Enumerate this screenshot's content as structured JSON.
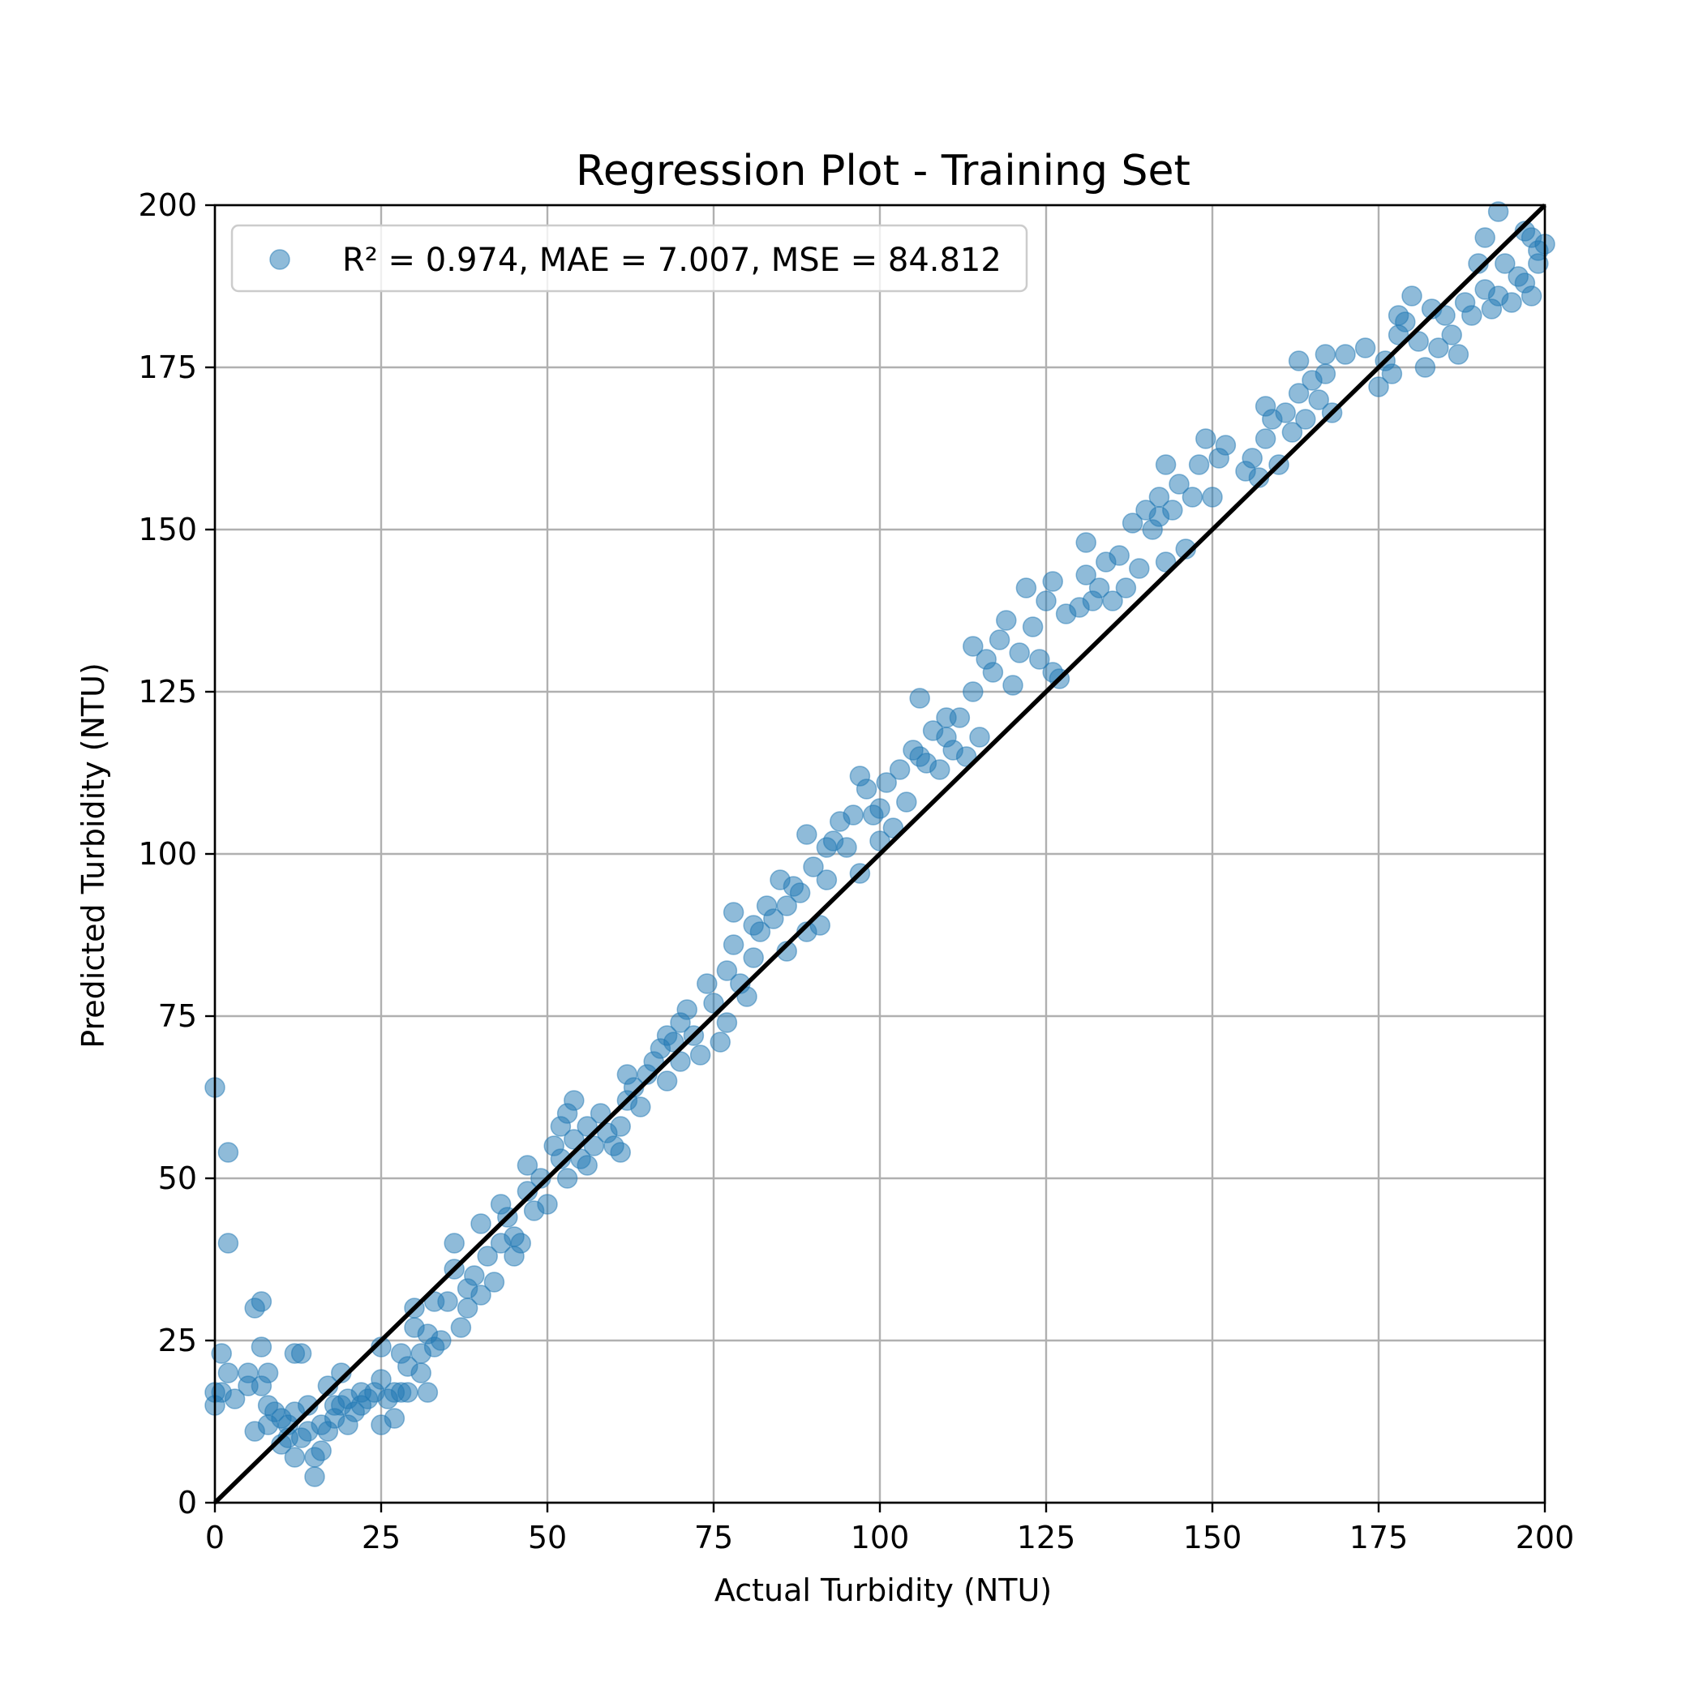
{
  "chart_data": {
    "type": "scatter",
    "title": "Regression Plot - Training Set",
    "xlabel": "Actual Turbidity (NTU)",
    "ylabel": "Predicted Turbidity (NTU)",
    "xlim": [
      0,
      200
    ],
    "ylim": [
      0,
      200
    ],
    "xticks": [
      "0",
      "25",
      "50",
      "75",
      "100",
      "125",
      "150",
      "175",
      "200"
    ],
    "yticks": [
      "0",
      "25",
      "50",
      "75",
      "100",
      "125",
      "150",
      "175",
      "200"
    ],
    "grid": true,
    "legend_position": "top-left",
    "legend_label": "R² = 0.974, MAE = 7.007, MSE = 84.812",
    "colors": {
      "points": "#1f77b4",
      "reference_line": "#000000"
    },
    "reference_line": {
      "x": [
        0,
        200
      ],
      "y": [
        0,
        200
      ]
    },
    "series": [
      {
        "name": "R² = 0.974, MAE = 7.007, MSE = 84.812",
        "points": [
          [
            0,
            64
          ],
          [
            0,
            15
          ],
          [
            0,
            17
          ],
          [
            1,
            23
          ],
          [
            1,
            17
          ],
          [
            2,
            54
          ],
          [
            2,
            40
          ],
          [
            2,
            20
          ],
          [
            3,
            16
          ],
          [
            5,
            20
          ],
          [
            5,
            18
          ],
          [
            6,
            30
          ],
          [
            6,
            11
          ],
          [
            7,
            31
          ],
          [
            7,
            24
          ],
          [
            7,
            18
          ],
          [
            8,
            20
          ],
          [
            8,
            15
          ],
          [
            8,
            12
          ],
          [
            9,
            14
          ],
          [
            10,
            13
          ],
          [
            10,
            9
          ],
          [
            11,
            12
          ],
          [
            11,
            10
          ],
          [
            12,
            23
          ],
          [
            12,
            7
          ],
          [
            12,
            14
          ],
          [
            13,
            23
          ],
          [
            13,
            10
          ],
          [
            14,
            15
          ],
          [
            14,
            11
          ],
          [
            15,
            4
          ],
          [
            15,
            7
          ],
          [
            16,
            8
          ],
          [
            16,
            12
          ],
          [
            17,
            18
          ],
          [
            17,
            11
          ],
          [
            18,
            13
          ],
          [
            18,
            15
          ],
          [
            19,
            20
          ],
          [
            19,
            15
          ],
          [
            20,
            12
          ],
          [
            20,
            16
          ],
          [
            21,
            14
          ],
          [
            22,
            15
          ],
          [
            22,
            17
          ],
          [
            23,
            16
          ],
          [
            24,
            17
          ],
          [
            25,
            24
          ],
          [
            25,
            19
          ],
          [
            25,
            12
          ],
          [
            26,
            16
          ],
          [
            27,
            17
          ],
          [
            27,
            13
          ],
          [
            28,
            17
          ],
          [
            28,
            23
          ],
          [
            29,
            21
          ],
          [
            29,
            17
          ],
          [
            30,
            30
          ],
          [
            30,
            27
          ],
          [
            31,
            23
          ],
          [
            31,
            20
          ],
          [
            32,
            26
          ],
          [
            32,
            17
          ],
          [
            33,
            31
          ],
          [
            33,
            24
          ],
          [
            34,
            25
          ],
          [
            35,
            31
          ],
          [
            36,
            40
          ],
          [
            36,
            36
          ],
          [
            37,
            27
          ],
          [
            38,
            33
          ],
          [
            38,
            30
          ],
          [
            39,
            35
          ],
          [
            40,
            32
          ],
          [
            40,
            43
          ],
          [
            41,
            38
          ],
          [
            42,
            34
          ],
          [
            43,
            46
          ],
          [
            43,
            40
          ],
          [
            44,
            44
          ],
          [
            45,
            41
          ],
          [
            45,
            38
          ],
          [
            46,
            40
          ],
          [
            47,
            52
          ],
          [
            47,
            48
          ],
          [
            48,
            45
          ],
          [
            49,
            50
          ],
          [
            50,
            46
          ],
          [
            51,
            55
          ],
          [
            52,
            58
          ],
          [
            52,
            53
          ],
          [
            53,
            60
          ],
          [
            53,
            50
          ],
          [
            54,
            62
          ],
          [
            54,
            56
          ],
          [
            55,
            53
          ],
          [
            56,
            58
          ],
          [
            56,
            52
          ],
          [
            57,
            55
          ],
          [
            58,
            60
          ],
          [
            59,
            57
          ],
          [
            60,
            55
          ],
          [
            61,
            58
          ],
          [
            61,
            54
          ],
          [
            62,
            66
          ],
          [
            62,
            62
          ],
          [
            63,
            64
          ],
          [
            64,
            61
          ],
          [
            65,
            66
          ],
          [
            66,
            68
          ],
          [
            67,
            70
          ],
          [
            68,
            72
          ],
          [
            68,
            65
          ],
          [
            69,
            71
          ],
          [
            70,
            74
          ],
          [
            70,
            68
          ],
          [
            71,
            76
          ],
          [
            72,
            72
          ],
          [
            73,
            69
          ],
          [
            74,
            80
          ],
          [
            75,
            77
          ],
          [
            76,
            71
          ],
          [
            77,
            82
          ],
          [
            77,
            74
          ],
          [
            78,
            86
          ],
          [
            78,
            91
          ],
          [
            79,
            80
          ],
          [
            80,
            78
          ],
          [
            81,
            84
          ],
          [
            81,
            89
          ],
          [
            82,
            88
          ],
          [
            83,
            92
          ],
          [
            84,
            90
          ],
          [
            85,
            96
          ],
          [
            86,
            85
          ],
          [
            86,
            92
          ],
          [
            87,
            95
          ],
          [
            88,
            94
          ],
          [
            89,
            103
          ],
          [
            89,
            88
          ],
          [
            90,
            98
          ],
          [
            91,
            89
          ],
          [
            92,
            101
          ],
          [
            92,
            96
          ],
          [
            93,
            102
          ],
          [
            94,
            105
          ],
          [
            95,
            101
          ],
          [
            96,
            106
          ],
          [
            97,
            97
          ],
          [
            97,
            112
          ],
          [
            98,
            110
          ],
          [
            99,
            106
          ],
          [
            100,
            102
          ],
          [
            100,
            107
          ],
          [
            101,
            111
          ],
          [
            102,
            104
          ],
          [
            103,
            113
          ],
          [
            104,
            108
          ],
          [
            105,
            116
          ],
          [
            106,
            115
          ],
          [
            106,
            124
          ],
          [
            107,
            114
          ],
          [
            108,
            119
          ],
          [
            109,
            113
          ],
          [
            110,
            118
          ],
          [
            110,
            121
          ],
          [
            111,
            116
          ],
          [
            112,
            121
          ],
          [
            113,
            115
          ],
          [
            114,
            125
          ],
          [
            114,
            132
          ],
          [
            115,
            118
          ],
          [
            116,
            130
          ],
          [
            117,
            128
          ],
          [
            118,
            133
          ],
          [
            119,
            136
          ],
          [
            120,
            126
          ],
          [
            121,
            131
          ],
          [
            122,
            141
          ],
          [
            123,
            135
          ],
          [
            124,
            130
          ],
          [
            125,
            139
          ],
          [
            126,
            128
          ],
          [
            126,
            142
          ],
          [
            127,
            127
          ],
          [
            128,
            137
          ],
          [
            130,
            138
          ],
          [
            131,
            143
          ],
          [
            131,
            148
          ],
          [
            132,
            139
          ],
          [
            133,
            141
          ],
          [
            134,
            145
          ],
          [
            135,
            139
          ],
          [
            136,
            146
          ],
          [
            137,
            141
          ],
          [
            138,
            151
          ],
          [
            139,
            144
          ],
          [
            140,
            153
          ],
          [
            141,
            150
          ],
          [
            142,
            152
          ],
          [
            142,
            155
          ],
          [
            143,
            160
          ],
          [
            143,
            145
          ],
          [
            144,
            153
          ],
          [
            145,
            157
          ],
          [
            146,
            147
          ],
          [
            147,
            155
          ],
          [
            148,
            160
          ],
          [
            149,
            164
          ],
          [
            150,
            155
          ],
          [
            151,
            161
          ],
          [
            152,
            163
          ],
          [
            155,
            159
          ],
          [
            156,
            161
          ],
          [
            157,
            158
          ],
          [
            158,
            164
          ],
          [
            158,
            169
          ],
          [
            159,
            167
          ],
          [
            160,
            160
          ],
          [
            161,
            168
          ],
          [
            162,
            165
          ],
          [
            163,
            171
          ],
          [
            163,
            176
          ],
          [
            164,
            167
          ],
          [
            165,
            173
          ],
          [
            166,
            170
          ],
          [
            167,
            177
          ],
          [
            167,
            174
          ],
          [
            168,
            168
          ],
          [
            170,
            177
          ],
          [
            173,
            178
          ],
          [
            175,
            172
          ],
          [
            176,
            176
          ],
          [
            177,
            174
          ],
          [
            178,
            180
          ],
          [
            178,
            183
          ],
          [
            179,
            182
          ],
          [
            180,
            186
          ],
          [
            181,
            179
          ],
          [
            182,
            175
          ],
          [
            183,
            184
          ],
          [
            184,
            178
          ],
          [
            185,
            183
          ],
          [
            186,
            180
          ],
          [
            187,
            177
          ],
          [
            188,
            185
          ],
          [
            189,
            183
          ],
          [
            190,
            191
          ],
          [
            191,
            187
          ],
          [
            191,
            195
          ],
          [
            192,
            184
          ],
          [
            193,
            186
          ],
          [
            193,
            199
          ],
          [
            194,
            191
          ],
          [
            195,
            185
          ],
          [
            196,
            189
          ],
          [
            197,
            196
          ],
          [
            197,
            188
          ],
          [
            198,
            195
          ],
          [
            198,
            186
          ],
          [
            199,
            193
          ],
          [
            199,
            191
          ],
          [
            200,
            194
          ]
        ]
      }
    ]
  }
}
